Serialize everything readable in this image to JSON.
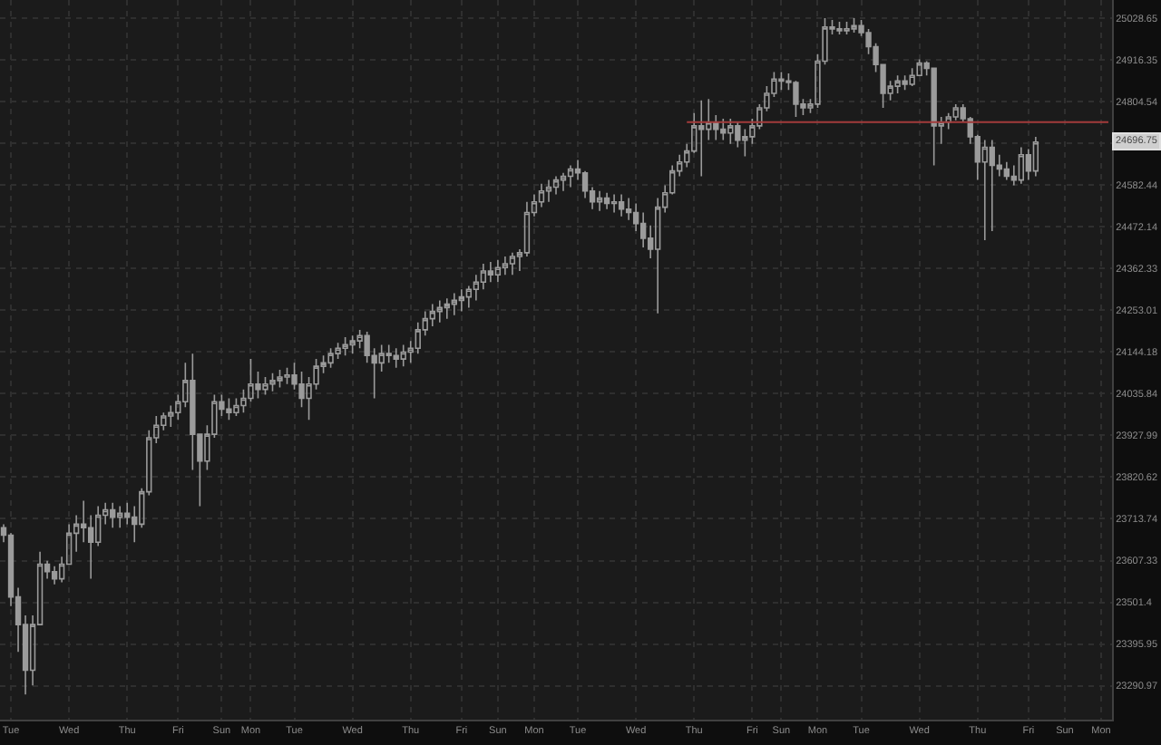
{
  "chart_data": {
    "type": "candlestick",
    "color": "#9b9b9b",
    "log": true,
    "grid": true,
    "categories": [
      null,
      "Tue",
      null,
      null,
      null,
      null,
      null,
      null,
      null,
      "Wed",
      null,
      null,
      null,
      null,
      null,
      null,
      null,
      "Thu",
      null,
      null,
      null,
      null,
      null,
      null,
      "Fri",
      null,
      null,
      null,
      null,
      null,
      "Sun",
      null,
      null,
      null,
      "Mon",
      null,
      null,
      null,
      null,
      null,
      "Tue",
      null,
      null,
      null,
      null,
      null,
      null,
      null,
      "Wed",
      null,
      null,
      null,
      null,
      null,
      null,
      null,
      "Thu",
      null,
      null,
      null,
      null,
      null,
      null,
      "Fri",
      null,
      null,
      null,
      null,
      "Sun",
      null,
      null,
      null,
      null,
      "Mon",
      null,
      null,
      null,
      null,
      null,
      "Tue",
      null,
      null,
      null,
      null,
      null,
      null,
      null,
      "Wed",
      null,
      null,
      null,
      null,
      null,
      null,
      null,
      "Thu",
      null,
      null,
      null,
      null,
      null,
      null,
      null,
      "Fri",
      null,
      null,
      null,
      "Sun",
      null,
      null,
      null,
      null,
      "Mon",
      null,
      null,
      null,
      null,
      null,
      "Tue",
      null,
      null,
      null,
      null,
      null,
      null,
      null,
      "Wed",
      null,
      null,
      null,
      null,
      null,
      null,
      null,
      "Thu",
      null,
      null,
      null,
      null,
      null,
      null,
      "Fri",
      null,
      null,
      null,
      null,
      "Sun",
      null,
      null,
      null,
      null,
      "Mon",
      null
    ],
    "ohlc": [
      [
        23691,
        23700,
        23654,
        23672
      ],
      [
        23672,
        23677,
        23492,
        23515
      ],
      [
        23515,
        23538,
        23376,
        23445
      ],
      [
        23445,
        23468,
        23269,
        23330
      ],
      [
        23330,
        23468,
        23292,
        23445
      ],
      [
        23445,
        23630,
        23445,
        23598
      ],
      [
        23598,
        23607,
        23561,
        23579
      ],
      [
        23579,
        23593,
        23547,
        23561
      ],
      [
        23561,
        23617,
        23552,
        23598
      ],
      [
        23598,
        23700,
        23598,
        23677
      ],
      [
        23677,
        23723,
        23630,
        23700
      ],
      [
        23700,
        23760,
        23654,
        23691
      ],
      [
        23691,
        23723,
        23561,
        23654
      ],
      [
        23654,
        23746,
        23644,
        23723
      ],
      [
        23723,
        23755,
        23700,
        23737
      ],
      [
        23737,
        23755,
        23691,
        23718
      ],
      [
        23718,
        23746,
        23691,
        23728
      ],
      [
        23728,
        23755,
        23700,
        23718
      ],
      [
        23718,
        23746,
        23654,
        23700
      ],
      [
        23700,
        23792,
        23691,
        23783
      ],
      [
        23783,
        23941,
        23774,
        23922
      ],
      [
        23922,
        23978,
        23908,
        23954
      ],
      [
        23954,
        23987,
        23941,
        23978
      ],
      [
        23978,
        24005,
        23950,
        23987
      ],
      [
        23987,
        24033,
        23968,
        24015
      ],
      [
        24015,
        24116,
        24001,
        24070
      ],
      [
        24070,
        24140,
        23839,
        23931
      ],
      [
        23931,
        23931,
        23746,
        23862
      ],
      [
        23862,
        23954,
        23839,
        23931
      ],
      [
        23931,
        24033,
        23922,
        24015
      ],
      [
        24015,
        24033,
        23978,
        23996
      ],
      [
        23996,
        24024,
        23968,
        23987
      ],
      [
        23987,
        24024,
        23978,
        24005
      ],
      [
        24005,
        24047,
        23987,
        24024
      ],
      [
        24024,
        24126,
        24015,
        24061
      ],
      [
        24061,
        24093,
        24024,
        24047
      ],
      [
        24047,
        24079,
        24033,
        24061
      ],
      [
        24061,
        24089,
        24042,
        24070
      ],
      [
        24070,
        24098,
        24052,
        24079
      ],
      [
        24079,
        24103,
        24061,
        24084
      ],
      [
        24084,
        24116,
        24047,
        24061
      ],
      [
        24061,
        24093,
        24001,
        24024
      ],
      [
        24024,
        24079,
        23968,
        24061
      ],
      [
        24061,
        24126,
        24047,
        24107
      ],
      [
        24107,
        24135,
        24089,
        24116
      ],
      [
        24116,
        24154,
        24103,
        24140
      ],
      [
        24140,
        24168,
        24126,
        24154
      ],
      [
        24154,
        24183,
        24135,
        24163
      ],
      [
        24163,
        24187,
        24140,
        24173
      ],
      [
        24173,
        24202,
        24154,
        24187
      ],
      [
        24187,
        24197,
        24116,
        24135
      ],
      [
        24135,
        24154,
        24024,
        24116
      ],
      [
        24116,
        24163,
        24093,
        24140
      ],
      [
        24140,
        24163,
        24116,
        24135
      ],
      [
        24135,
        24154,
        24103,
        24126
      ],
      [
        24126,
        24163,
        24107,
        24144
      ],
      [
        24144,
        24173,
        24116,
        24154
      ],
      [
        24154,
        24221,
        24140,
        24202
      ],
      [
        24202,
        24250,
        24187,
        24231
      ],
      [
        24231,
        24269,
        24211,
        24250
      ],
      [
        24250,
        24279,
        24221,
        24260
      ],
      [
        24260,
        24284,
        24231,
        24269
      ],
      [
        24269,
        24298,
        24240,
        24279
      ],
      [
        24279,
        24308,
        24250,
        24288
      ],
      [
        24288,
        24317,
        24260,
        24308
      ],
      [
        24308,
        24346,
        24279,
        24327
      ],
      [
        24327,
        24375,
        24308,
        24356
      ],
      [
        24356,
        24380,
        24327,
        24346
      ],
      [
        24346,
        24385,
        24327,
        24365
      ],
      [
        24365,
        24394,
        24346,
        24375
      ],
      [
        24375,
        24404,
        24346,
        24394
      ],
      [
        24394,
        24413,
        24356,
        24404
      ],
      [
        24404,
        24538,
        24394,
        24510
      ],
      [
        24510,
        24558,
        24500,
        24538
      ],
      [
        24538,
        24586,
        24524,
        24567
      ],
      [
        24567,
        24596,
        24538,
        24577
      ],
      [
        24577,
        24606,
        24558,
        24596
      ],
      [
        24596,
        24615,
        24567,
        24606
      ],
      [
        24606,
        24635,
        24577,
        24625
      ],
      [
        24625,
        24649,
        24596,
        24615
      ],
      [
        24615,
        24620,
        24548,
        24567
      ],
      [
        24567,
        24577,
        24519,
        24538
      ],
      [
        24538,
        24567,
        24514,
        24548
      ],
      [
        24548,
        24562,
        24519,
        24534
      ],
      [
        24534,
        24558,
        24510,
        24538
      ],
      [
        24538,
        24558,
        24500,
        24519
      ],
      [
        24519,
        24548,
        24490,
        24510
      ],
      [
        24510,
        24534,
        24461,
        24481
      ],
      [
        24481,
        24510,
        24418,
        24442
      ],
      [
        24442,
        24476,
        24389,
        24413
      ],
      [
        24413,
        24548,
        24245,
        24524
      ],
      [
        24524,
        24582,
        24510,
        24562
      ],
      [
        24562,
        24635,
        24558,
        24620
      ],
      [
        24620,
        24663,
        24606,
        24644
      ],
      [
        24644,
        24692,
        24630,
        24673
      ],
      [
        24673,
        24774,
        24668,
        24740
      ],
      [
        24740,
        24808,
        24606,
        24731
      ],
      [
        24731,
        24812,
        24702,
        24750
      ],
      [
        24750,
        24769,
        24702,
        24731
      ],
      [
        24731,
        24759,
        24702,
        24721
      ],
      [
        24721,
        24759,
        24692,
        24740
      ],
      [
        24740,
        24750,
        24683,
        24702
      ],
      [
        24702,
        24731,
        24659,
        24711
      ],
      [
        24711,
        24759,
        24692,
        24740
      ],
      [
        24740,
        24798,
        24731,
        24788
      ],
      [
        24788,
        24846,
        24779,
        24827
      ],
      [
        24827,
        24884,
        24817,
        24865
      ],
      [
        24865,
        24884,
        24836,
        24860
      ],
      [
        24860,
        24880,
        24836,
        24856
      ],
      [
        24856,
        24860,
        24764,
        24798
      ],
      [
        24798,
        24812,
        24769,
        24788
      ],
      [
        24788,
        24812,
        24774,
        24798
      ],
      [
        24798,
        24932,
        24788,
        24913
      ],
      [
        24913,
        25029,
        24904,
        25005
      ],
      [
        25005,
        25024,
        24985,
        25000
      ],
      [
        25000,
        25019,
        24985,
        24995
      ],
      [
        24995,
        25019,
        24985,
        25000
      ],
      [
        25000,
        25029,
        24990,
        25009
      ],
      [
        25009,
        25024,
        24981,
        24990
      ],
      [
        24990,
        25000,
        24932,
        24952
      ],
      [
        24952,
        24961,
        24884,
        24904
      ],
      [
        24904,
        24904,
        24788,
        24827
      ],
      [
        24827,
        24860,
        24808,
        24846
      ],
      [
        24846,
        24875,
        24827,
        24860
      ],
      [
        24860,
        24875,
        24836,
        24851
      ],
      [
        24851,
        24894,
        24846,
        24875
      ],
      [
        24875,
        24918,
        24875,
        24908
      ],
      [
        24908,
        24913,
        24875,
        24894
      ],
      [
        24894,
        24894,
        24635,
        24740
      ],
      [
        24740,
        24764,
        24692,
        24750
      ],
      [
        24750,
        24774,
        24731,
        24764
      ],
      [
        24764,
        24798,
        24755,
        24788
      ],
      [
        24788,
        24798,
        24750,
        24759
      ],
      [
        24759,
        24764,
        24692,
        24711
      ],
      [
        24711,
        24716,
        24596,
        24644
      ],
      [
        24644,
        24702,
        24437,
        24683
      ],
      [
        24683,
        24702,
        24461,
        24635
      ],
      [
        24635,
        24663,
        24606,
        24625
      ],
      [
        24625,
        24644,
        24596,
        24606
      ],
      [
        24606,
        24635,
        24582,
        24596
      ],
      [
        24596,
        24683,
        24586,
        24663
      ],
      [
        24663,
        24678,
        24596,
        24620
      ],
      [
        24620,
        24711,
        24606,
        24697
      ],
      null,
      null,
      null,
      null,
      null,
      null,
      null,
      null,
      null,
      null
    ],
    "series": [
      {
        "type": "line",
        "color": "#a33b3b",
        "values": [
          null,
          null,
          null,
          null,
          null,
          null,
          null,
          null,
          null,
          null,
          null,
          null,
          null,
          null,
          null,
          null,
          null,
          null,
          null,
          null,
          null,
          null,
          null,
          null,
          null,
          null,
          null,
          null,
          null,
          null,
          null,
          null,
          null,
          null,
          null,
          null,
          null,
          null,
          null,
          null,
          null,
          null,
          null,
          null,
          null,
          null,
          null,
          null,
          null,
          null,
          null,
          null,
          null,
          null,
          null,
          null,
          null,
          null,
          null,
          null,
          null,
          null,
          null,
          null,
          null,
          null,
          null,
          null,
          null,
          null,
          null,
          null,
          null,
          null,
          null,
          null,
          null,
          null,
          null,
          null,
          null,
          null,
          null,
          null,
          null,
          null,
          null,
          null,
          null,
          null,
          null,
          null,
          null,
          null,
          24750,
          24750,
          24750,
          24750,
          24750,
          24750,
          24750,
          24750,
          24750,
          24750,
          24750,
          24750,
          24750,
          24750,
          24750,
          24750,
          24750,
          24750,
          24750,
          24750,
          24750,
          24750,
          24750,
          24750,
          24750,
          24750,
          24750,
          24750,
          24750,
          24750,
          24750,
          24750,
          24750,
          24750,
          24750,
          24750,
          24750,
          24750,
          24750,
          24750,
          24750,
          24750,
          24750,
          24750,
          24750,
          24750,
          24750,
          24750,
          24750,
          24750,
          24750,
          24750,
          24750,
          24750,
          24750,
          24750,
          24750,
          24750,
          24750
        ]
      }
    ],
    "ylim": [
      23206,
      25078
    ],
    "yticks": [
      23290.97,
      23395.95,
      23501.4,
      23607.33,
      23713.74,
      23820.62,
      23927.99,
      24035.84,
      24144.18,
      24253.01,
      24362.33,
      24472.14,
      24582.44,
      {
        "value": 24693.2,
        "label": null
      },
      24804.54,
      24916.35,
      25028.65
    ],
    "annotations": [
      {
        "text": "24696.75",
        "y": 24696.75
      }
    ]
  }
}
